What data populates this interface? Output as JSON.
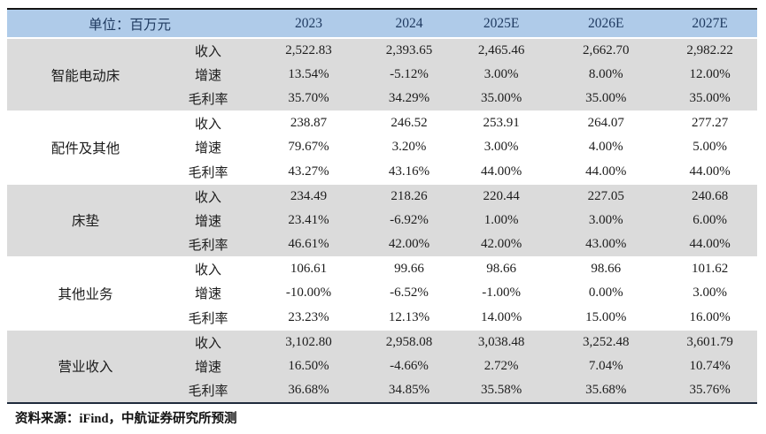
{
  "table": {
    "unit_label": "单位：百万元",
    "year_headers": [
      "2023",
      "2024",
      "2025E",
      "2026E",
      "2027E"
    ],
    "groups": [
      {
        "name": "智能电动床",
        "metrics": [
          {
            "label": "收入",
            "values": [
              "2,522.83",
              "2,393.65",
              "2,465.46",
              "2,662.70",
              "2,982.22"
            ]
          },
          {
            "label": "增速",
            "values": [
              "13.54%",
              "-5.12%",
              "3.00%",
              "8.00%",
              "12.00%"
            ]
          },
          {
            "label": "毛利率",
            "values": [
              "35.70%",
              "34.29%",
              "35.00%",
              "35.00%",
              "35.00%"
            ]
          }
        ]
      },
      {
        "name": "配件及其他",
        "metrics": [
          {
            "label": "收入",
            "values": [
              "238.87",
              "246.52",
              "253.91",
              "264.07",
              "277.27"
            ]
          },
          {
            "label": "增速",
            "values": [
              "79.67%",
              "3.20%",
              "3.00%",
              "4.00%",
              "5.00%"
            ]
          },
          {
            "label": "毛利率",
            "values": [
              "43.27%",
              "43.16%",
              "44.00%",
              "44.00%",
              "44.00%"
            ]
          }
        ]
      },
      {
        "name": "床垫",
        "metrics": [
          {
            "label": "收入",
            "values": [
              "234.49",
              "218.26",
              "220.44",
              "227.05",
              "240.68"
            ]
          },
          {
            "label": "增速",
            "values": [
              "23.41%",
              "-6.92%",
              "1.00%",
              "3.00%",
              "6.00%"
            ]
          },
          {
            "label": "毛利率",
            "values": [
              "46.61%",
              "42.00%",
              "42.00%",
              "43.00%",
              "44.00%"
            ]
          }
        ]
      },
      {
        "name": "其他业务",
        "metrics": [
          {
            "label": "收入",
            "values": [
              "106.61",
              "99.66",
              "98.66",
              "98.66",
              "101.62"
            ]
          },
          {
            "label": "增速",
            "values": [
              "-10.00%",
              "-6.52%",
              "-1.00%",
              "0.00%",
              "3.00%"
            ]
          },
          {
            "label": "毛利率",
            "values": [
              "23.23%",
              "12.13%",
              "14.00%",
              "15.00%",
              "16.00%"
            ]
          }
        ]
      },
      {
        "name": "营业收入",
        "metrics": [
          {
            "label": "收入",
            "values": [
              "3,102.80",
              "2,958.08",
              "3,038.48",
              "3,252.48",
              "3,601.79"
            ]
          },
          {
            "label": "增速",
            "values": [
              "16.50%",
              "-4.66%",
              "2.72%",
              "7.04%",
              "10.74%"
            ]
          },
          {
            "label": "毛利率",
            "values": [
              "36.68%",
              "34.85%",
              "35.58%",
              "35.68%",
              "35.76%"
            ]
          }
        ]
      }
    ]
  },
  "footer": {
    "source": "资料来源：iFind，中航证券研究所预测"
  },
  "colors": {
    "header_bg": "#AFCBE9",
    "header_text": "#1F3A60",
    "shaded_row": "#DBDBDB",
    "border_dark": "#1F2A3C"
  }
}
